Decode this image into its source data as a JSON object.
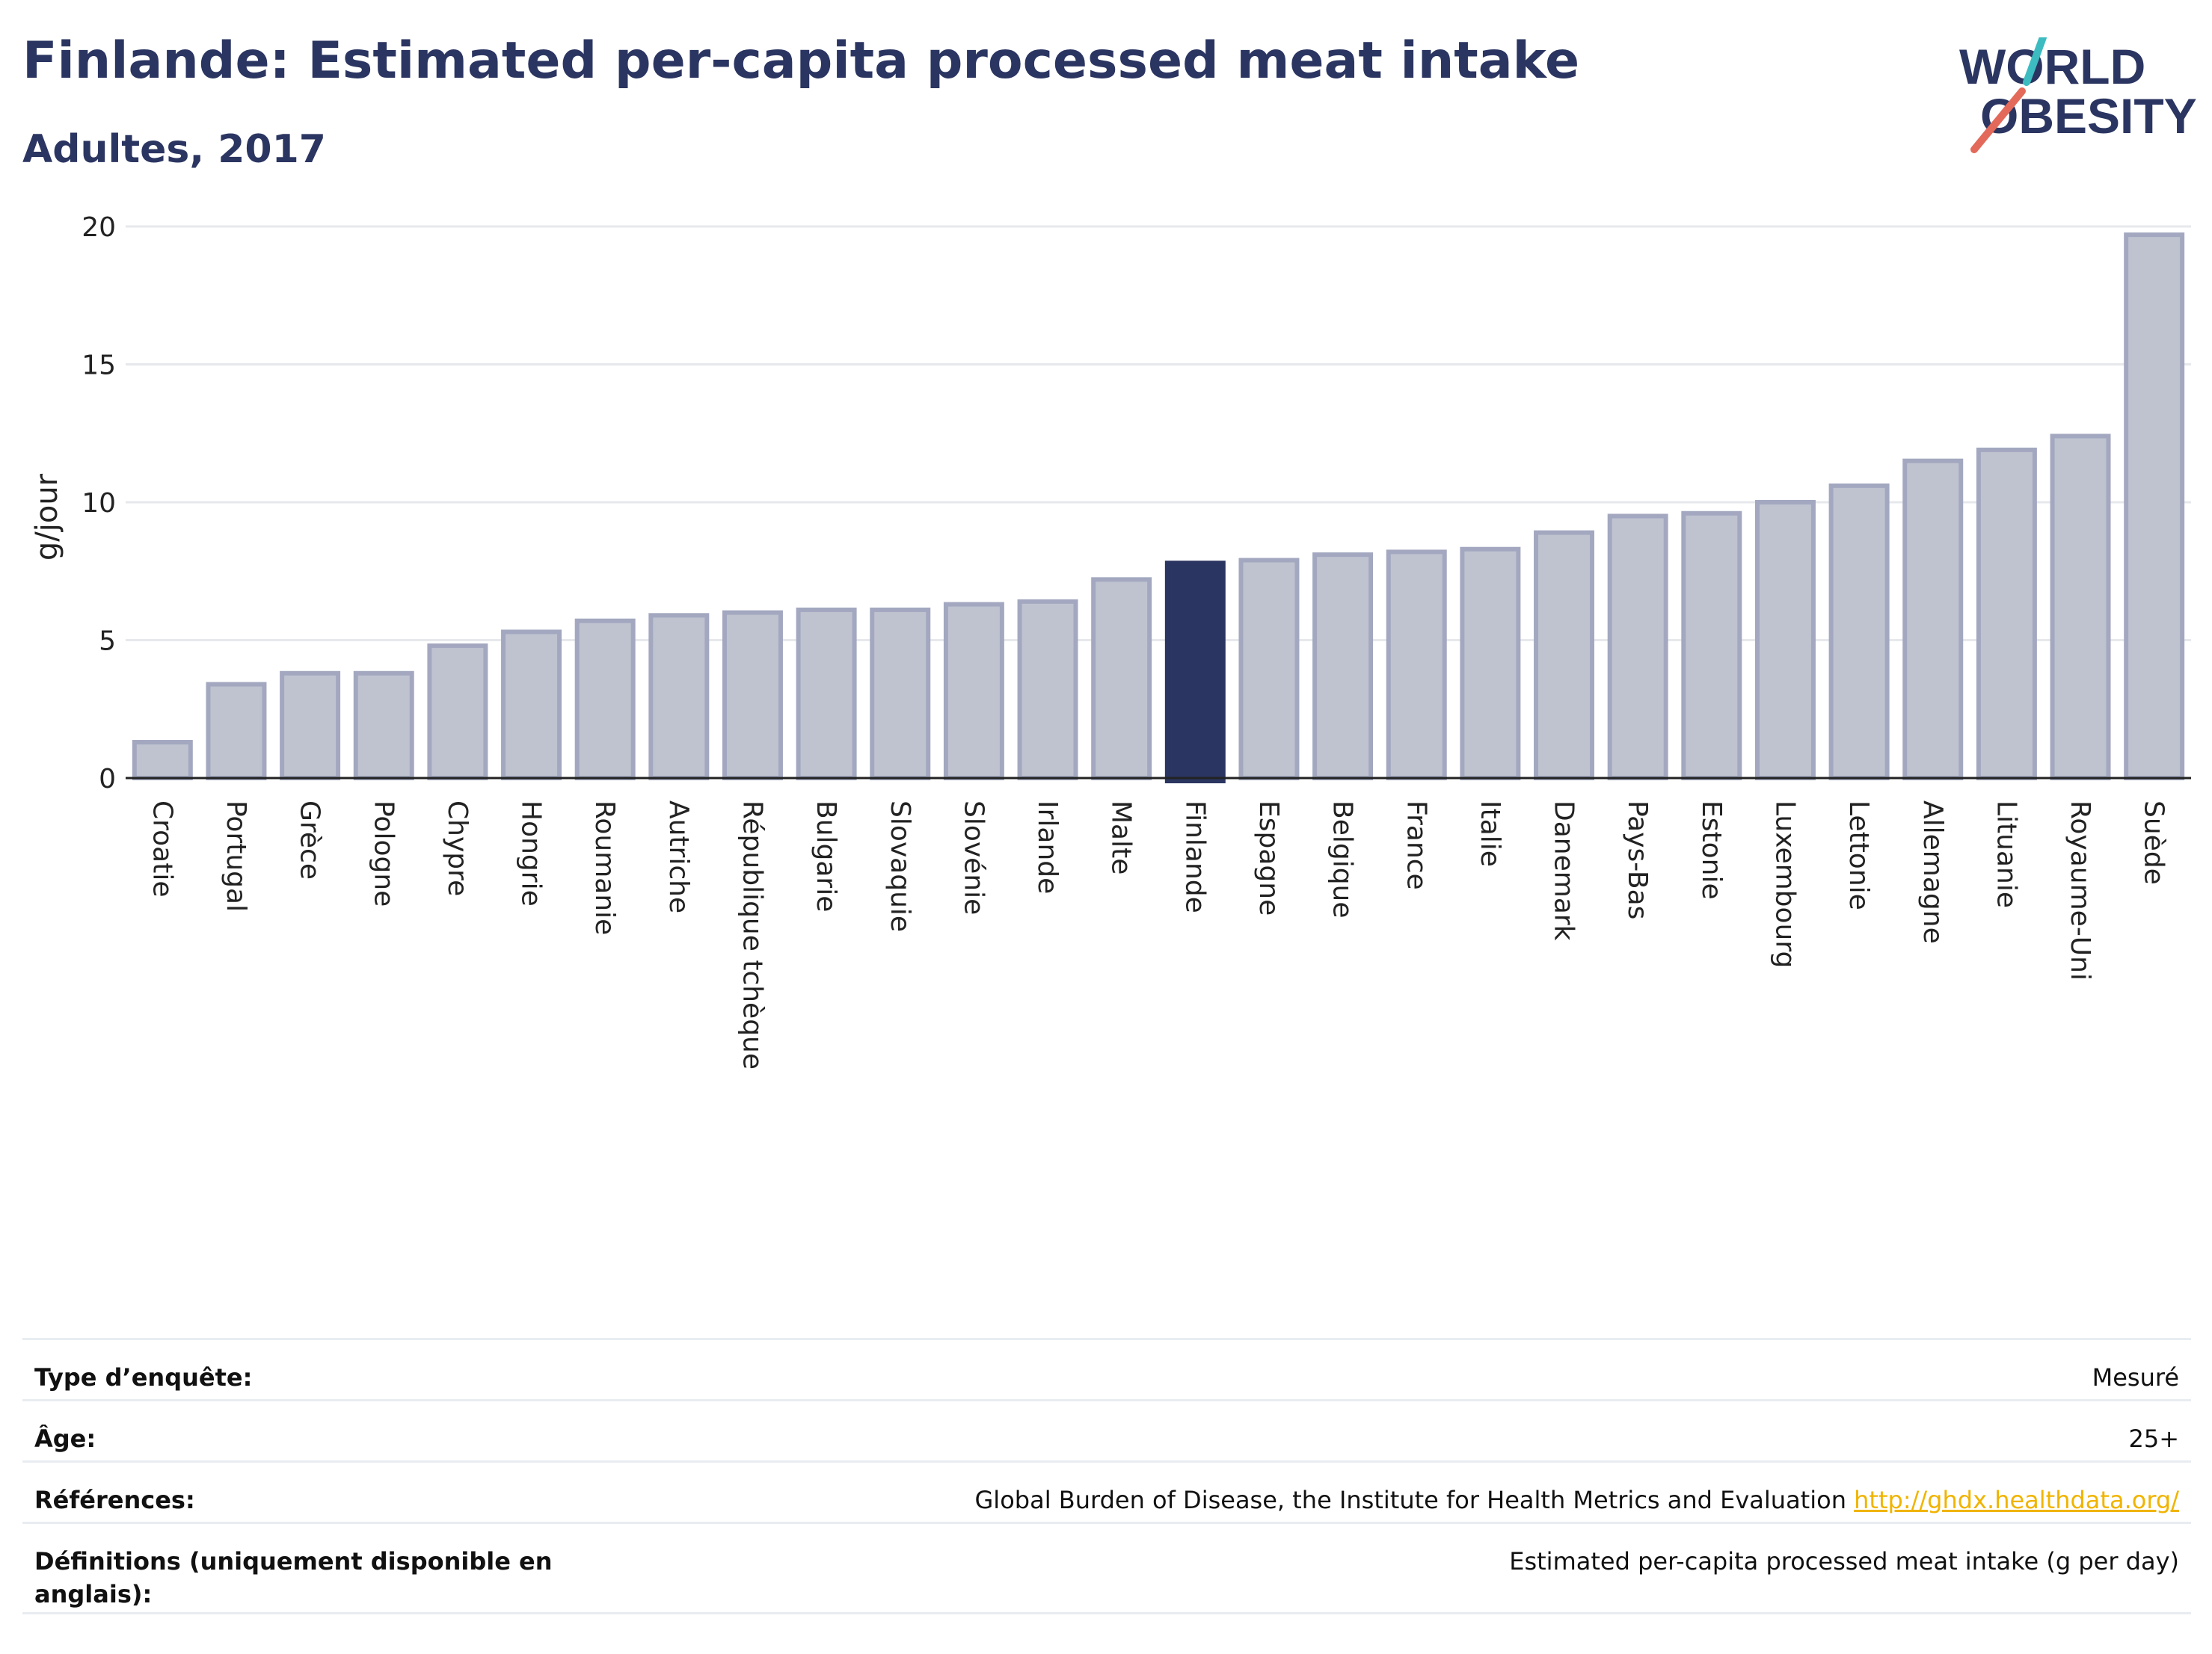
{
  "header": {
    "title": "Finlande: Estimated per-capita processed meat intake",
    "subtitle": "Adultes, 2017"
  },
  "logo": {
    "line1": "WORLD",
    "line2": "OBESITY",
    "colors": {
      "text": "#2b3561",
      "slash_teal": "#3cbcc0",
      "slash_coral": "#e36a5a"
    }
  },
  "colors": {
    "bar": "#bfc3d0",
    "bar_stroke": "#a3a8c0",
    "highlight": "#2b3561",
    "grid": "#e6e8ec",
    "axis": "#222222"
  },
  "chart_data": {
    "type": "bar",
    "ylabel": "g/jour",
    "xlabel": "",
    "ylim": [
      0,
      20
    ],
    "yticks": [
      0,
      5,
      10,
      15,
      20
    ],
    "grid": true,
    "highlight": "Finlande",
    "categories": [
      "Croatie",
      "Portugal",
      "Grèce",
      "Pologne",
      "Chypre",
      "Hongrie",
      "Roumanie",
      "Autriche",
      "République tchèque",
      "Bulgarie",
      "Slovaquie",
      "Slovénie",
      "Irlande",
      "Malte",
      "Finlande",
      "Espagne",
      "Belgique",
      "France",
      "Italie",
      "Danemark",
      "Pays-Bas",
      "Estonie",
      "Luxembourg",
      "Lettonie",
      "Allemagne",
      "Lituanie",
      "Royaume-Uni",
      "Suède"
    ],
    "values": [
      1.3,
      3.4,
      3.8,
      3.8,
      4.8,
      5.3,
      5.7,
      5.9,
      6.0,
      6.1,
      6.1,
      6.3,
      6.4,
      7.2,
      7.8,
      7.9,
      8.1,
      8.2,
      8.3,
      8.9,
      9.5,
      9.6,
      10.0,
      10.6,
      11.5,
      11.9,
      12.4,
      19.7
    ]
  },
  "info": {
    "rows": [
      {
        "label": "Type d’enquête:",
        "value": "Mesuré"
      },
      {
        "label": "Âge:",
        "value": "25+"
      },
      {
        "label": "Références:",
        "value": "Global Burden of Disease, the Institute for Health Metrics and Evaluation",
        "link": "http://ghdx.healthdata.org/"
      },
      {
        "label": "Définitions (uniquement disponible en anglais):",
        "value": "Estimated per-capita processed meat intake (g per day)"
      }
    ]
  }
}
